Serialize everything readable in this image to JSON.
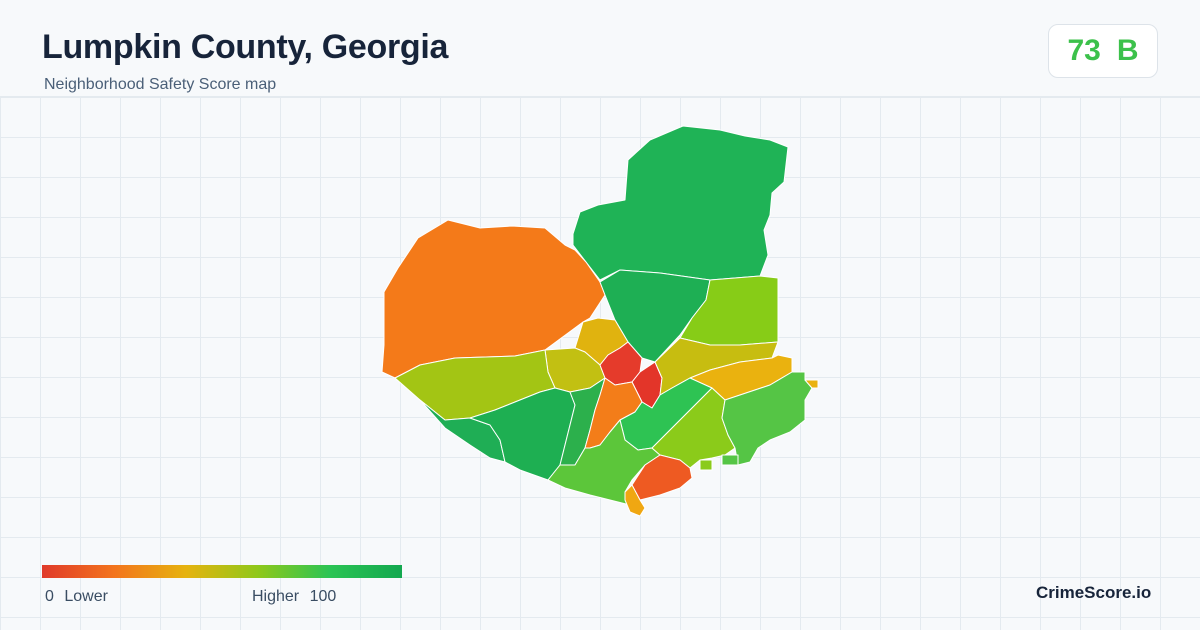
{
  "header": {
    "title": "Lumpkin County, Georgia",
    "subtitle": "Neighborhood Safety Score map"
  },
  "score": {
    "value": "73",
    "grade": "B",
    "color": "#3cc14b"
  },
  "legend": {
    "min": "0",
    "low_label": "Lower",
    "high_label": "Higher",
    "max": "100",
    "colors": [
      "#e03a2a",
      "#f3741d",
      "#e6b30f",
      "#8fc81a",
      "#2bc454",
      "#13a84f"
    ]
  },
  "brand": "CrimeScore.io",
  "regions": [
    {
      "id": "north",
      "color": "#1fb356"
    },
    {
      "id": "northwest",
      "color": "#f47a19"
    },
    {
      "id": "north-center",
      "color": "#1eaf54"
    },
    {
      "id": "northeast",
      "color": "#87cc17"
    },
    {
      "id": "west",
      "color": "#a3c514"
    },
    {
      "id": "center-north",
      "color": "#e0b30f"
    },
    {
      "id": "center-west",
      "color": "#c2c012"
    },
    {
      "id": "town-west",
      "color": "#e53b2b"
    },
    {
      "id": "town-east",
      "color": "#e33529"
    },
    {
      "id": "east-center",
      "color": "#c7bd10"
    },
    {
      "id": "east",
      "color": "#eab20f"
    },
    {
      "id": "southwest-edge",
      "color": "#1fae55"
    },
    {
      "id": "southwest",
      "color": "#1eaf52"
    },
    {
      "id": "south-center-green",
      "color": "#2cb04c"
    },
    {
      "id": "center-orange",
      "color": "#f37d19"
    },
    {
      "id": "center-east-green",
      "color": "#2ec353"
    },
    {
      "id": "south",
      "color": "#5cc63a"
    },
    {
      "id": "southeast-center",
      "color": "#8bcb1a"
    },
    {
      "id": "southeast",
      "color": "#55c545"
    },
    {
      "id": "south-red",
      "color": "#ee5a22"
    },
    {
      "id": "south-tip",
      "color": "#f0a712"
    }
  ]
}
